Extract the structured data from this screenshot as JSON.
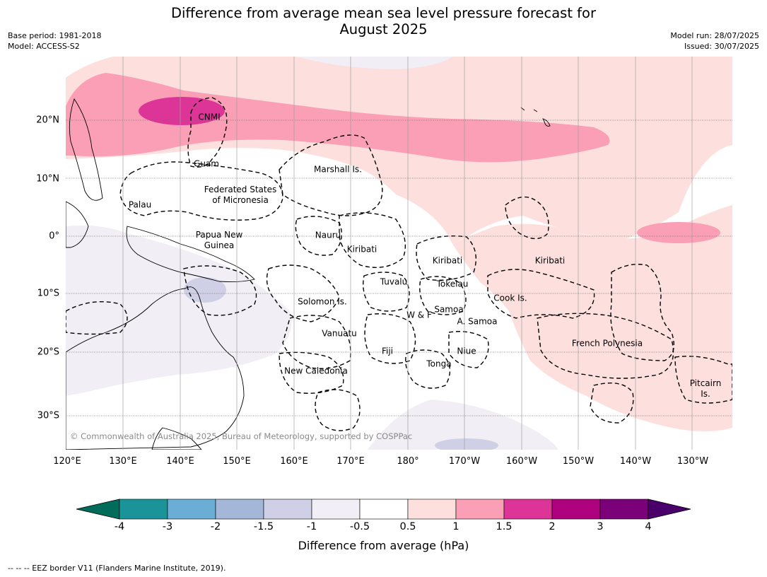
{
  "title": {
    "line1": "Difference from average mean sea level pressure forecast for",
    "line2": "August 2025"
  },
  "meta": {
    "base_period": "Base period: 1981-2018",
    "model": "Model: ACCESS-S2",
    "model_run": "Model run: 28/07/2025",
    "issued": "Issued: 30/07/2025"
  },
  "lon_labels": [
    "120°E",
    "130°E",
    "140°E",
    "150°E",
    "160°E",
    "170°E",
    "180°",
    "170°W",
    "160°W",
    "150°W",
    "140°W",
    "130°W"
  ],
  "lat_labels": [
    "20°N",
    "10°N",
    "0°",
    "10°S",
    "20°S",
    "30°S"
  ],
  "regions": {
    "cnmi": "CNMI",
    "guam": "Guam",
    "marshall": "Marshall Is.",
    "fsm": "Federated States\nof Micronesia",
    "palau": "Palau",
    "png": "Papua New\nGuinea",
    "nauru": "Nauru",
    "kiribati_w": "Kiribati",
    "kiribati_c": "Kiribati",
    "kiribati_e": "Kiribati",
    "tuvalu": "Tuvalu",
    "tokelau": "Tokelau",
    "cook": "Cook Is.",
    "solomon": "Solomon Is.",
    "samoa": "Samoa",
    "wf": "W & F",
    "asamoa": "A. Samoa",
    "vanuatu": "Vanuatu",
    "fiji": "Fiji",
    "niue": "Niue",
    "tonga": "Tonga",
    "newcal": "New Caledonia",
    "fp": "French Polynesia",
    "pitcairn": "Pitcairn\nIs."
  },
  "copyright": "© Commonwealth of Australia 2025, Bureau of Meteorology, supported by COSPPac",
  "colorbar": {
    "title": "Difference from average (hPa)",
    "ticks": [
      "-4",
      "-3",
      "-2",
      "-1.5",
      "-1",
      "-0.5",
      "0.5",
      "1",
      "1.5",
      "2",
      "3",
      "4"
    ],
    "colors": [
      "#1a9399",
      "#6aaed6",
      "#a4b7d8",
      "#cfcfe6",
      "#f1eef5",
      "#ffffff",
      "#fde0dd",
      "#fa9fb5",
      "#dd3497",
      "#ae017e",
      "#7a0177"
    ],
    "under_color": "#016c59",
    "over_color": "#49006a"
  },
  "footnote": "--  --  -- EEZ border V11 (Flanders Marine Institute, 2019)."
}
